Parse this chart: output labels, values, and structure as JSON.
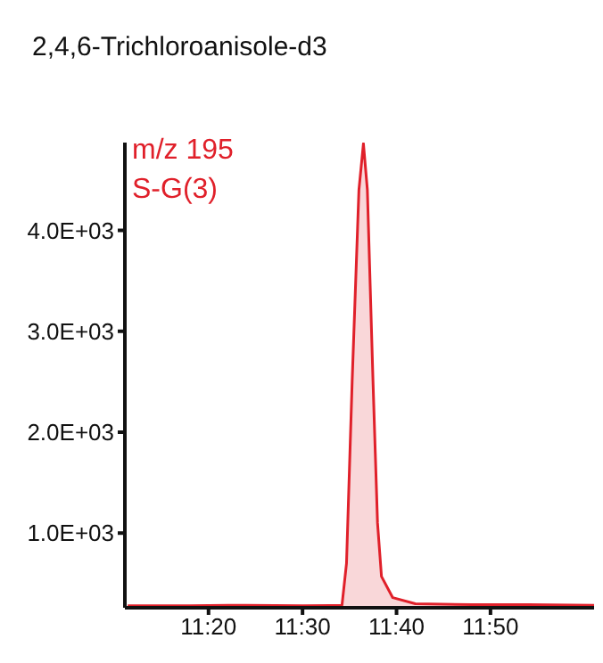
{
  "chart_data": {
    "type": "area",
    "title": "2,4,6-Trichloroanisole-d3",
    "annotations": [
      "m/z 195",
      "S-G(3)"
    ],
    "x": [
      11.19,
      11.3,
      11.4,
      11.5,
      11.55,
      11.57,
      11.578,
      11.588,
      11.6,
      11.608,
      11.615,
      11.625,
      11.633,
      11.64,
      11.66,
      11.7,
      11.8,
      11.9,
      12.017
    ],
    "series": [
      {
        "color": "#e0202a",
        "values": [
          280,
          280,
          285,
          280,
          282,
          285,
          700,
          2500,
          4400,
          4860,
          4400,
          2500,
          1100,
          570,
          360,
          300,
          290,
          290,
          285
        ]
      }
    ],
    "xlim": [
      11.185,
      12.017
    ],
    "xticks": [
      {
        "value": 11.3333,
        "label": "11:20"
      },
      {
        "value": 11.5,
        "label": "11:30"
      },
      {
        "value": 11.6667,
        "label": "11:40"
      },
      {
        "value": 11.8333,
        "label": "11:50"
      }
    ],
    "ylim": [
      260,
      4870
    ],
    "yticks": [
      {
        "value": 1000,
        "label": "1.0E+03"
      },
      {
        "value": 2000,
        "label": "2.0E+03"
      },
      {
        "value": 3000,
        "label": "3.0E+03"
      },
      {
        "value": 4000,
        "label": "4.0E+03"
      }
    ],
    "grid": false,
    "legend": false
  }
}
